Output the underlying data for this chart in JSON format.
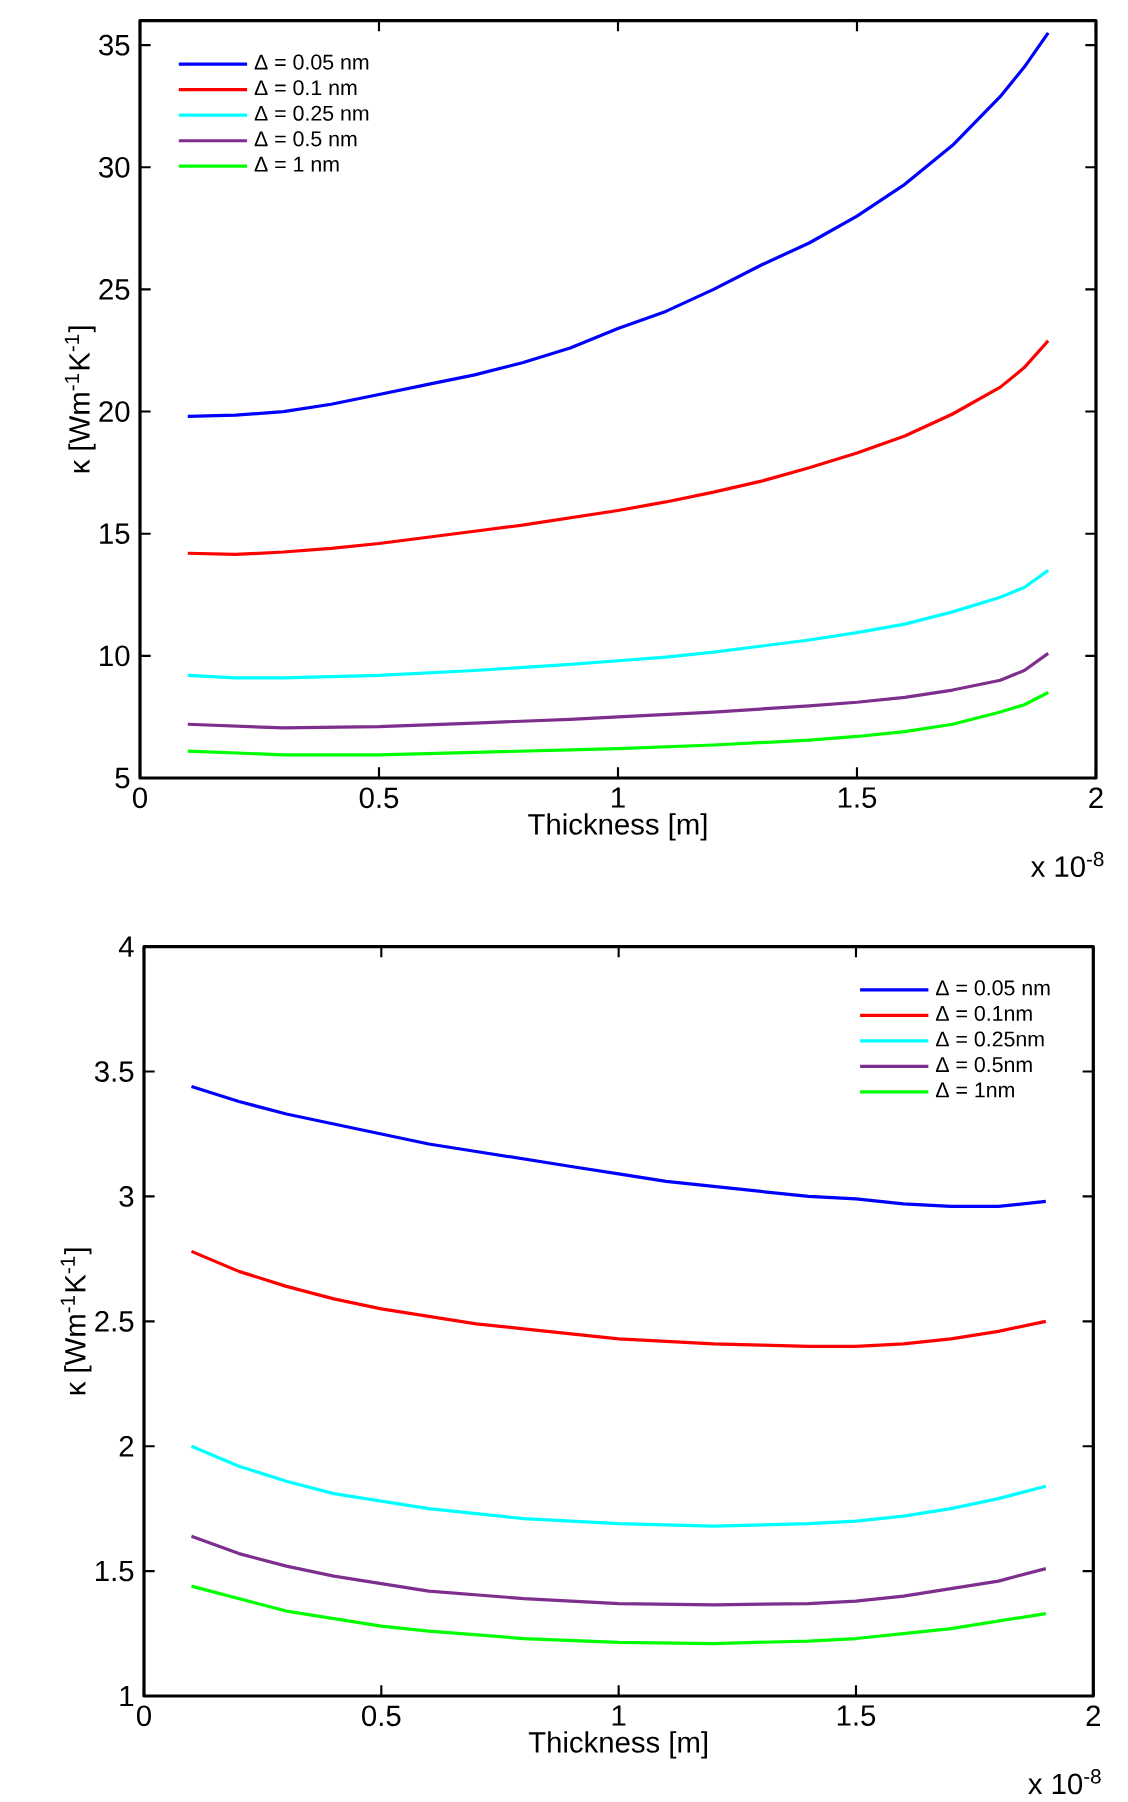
{
  "chart_data": [
    {
      "type": "line",
      "xlabel": "Thickness [m]",
      "ylabel": "κ [Wm$^{-1}$K$^{-1}$]",
      "xlim": [
        0,
        2
      ],
      "xticks": [
        0,
        0.5,
        1,
        1.5,
        2
      ],
      "ylim": [
        5,
        36
      ],
      "yticks": [
        5,
        10,
        15,
        20,
        25,
        30,
        35
      ],
      "legend": "top left",
      "grid": false,
      "marker": "none",
      "line_style": "solid",
      "annotations": [
        "x 10$^{-8}$"
      ],
      "series": [
        {
          "name": "Δ = 0.05 nm",
          "color": "#0000ff",
          "x": [
            0.1,
            0.2,
            0.3,
            0.4,
            0.5,
            0.6,
            0.7,
            0.8,
            0.9,
            1.0,
            1.1,
            1.2,
            1.3,
            1.4,
            1.5,
            1.6,
            1.7,
            1.8,
            1.85,
            1.9
          ],
          "values": [
            19.8,
            19.85,
            20.0,
            20.3,
            20.7,
            21.1,
            21.5,
            22.0,
            22.6,
            23.4,
            24.1,
            25.0,
            26.0,
            26.9,
            28.0,
            29.3,
            30.9,
            32.9,
            34.1,
            35.5
          ]
        },
        {
          "name": "Δ = 0.1 nm",
          "color": "#ff0000",
          "x": [
            0.1,
            0.2,
            0.3,
            0.4,
            0.5,
            0.6,
            0.7,
            0.8,
            0.9,
            1.0,
            1.1,
            1.2,
            1.3,
            1.4,
            1.5,
            1.6,
            1.7,
            1.8,
            1.85,
            1.9
          ],
          "values": [
            14.2,
            14.15,
            14.25,
            14.4,
            14.6,
            14.85,
            15.1,
            15.35,
            15.65,
            15.95,
            16.3,
            16.7,
            17.15,
            17.7,
            18.3,
            19.0,
            19.9,
            21.0,
            21.8,
            22.9
          ]
        },
        {
          "name": "Δ = 0.25 nm",
          "color": "#00ffff",
          "x": [
            0.1,
            0.2,
            0.3,
            0.5,
            0.7,
            0.9,
            1.0,
            1.1,
            1.2,
            1.3,
            1.4,
            1.5,
            1.6,
            1.7,
            1.8,
            1.85,
            1.9
          ],
          "values": [
            9.2,
            9.1,
            9.1,
            9.2,
            9.4,
            9.65,
            9.8,
            9.95,
            10.15,
            10.4,
            10.65,
            10.95,
            11.3,
            11.8,
            12.4,
            12.8,
            13.5
          ]
        },
        {
          "name": "Δ = 0.5 nm",
          "color": "#7e2f8e",
          "x": [
            0.1,
            0.3,
            0.5,
            0.7,
            0.9,
            1.0,
            1.2,
            1.4,
            1.5,
            1.6,
            1.7,
            1.8,
            1.85,
            1.9
          ],
          "values": [
            7.2,
            7.05,
            7.1,
            7.25,
            7.4,
            7.5,
            7.7,
            7.95,
            8.1,
            8.3,
            8.6,
            9.0,
            9.4,
            10.1
          ]
        },
        {
          "name": "Δ = 1 nm",
          "color": "#00ff00",
          "x": [
            0.1,
            0.3,
            0.5,
            0.7,
            0.9,
            1.0,
            1.2,
            1.4,
            1.5,
            1.6,
            1.7,
            1.8,
            1.85,
            1.9
          ],
          "values": [
            6.1,
            5.95,
            5.95,
            6.05,
            6.15,
            6.2,
            6.35,
            6.55,
            6.7,
            6.9,
            7.2,
            7.7,
            8.0,
            8.5
          ]
        }
      ]
    },
    {
      "type": "line",
      "xlabel": "Thickness [m]",
      "ylabel": "κ [Wm$^{-1}$K$^{-1}$]",
      "xlim": [
        0,
        2
      ],
      "xticks": [
        0,
        0.5,
        1,
        1.5,
        2
      ],
      "ylim": [
        1,
        4
      ],
      "yticks": [
        1,
        1.5,
        2,
        2.5,
        3,
        3.5,
        4
      ],
      "legend": "top right",
      "grid": false,
      "marker": "none",
      "line_style": "solid",
      "annotations": [
        "x 10$^{-8}$"
      ],
      "series": [
        {
          "name": "Δ = 0.05 nm",
          "color": "#0000ff",
          "x": [
            0.1,
            0.2,
            0.3,
            0.4,
            0.5,
            0.6,
            0.7,
            0.8,
            0.9,
            1.0,
            1.1,
            1.2,
            1.3,
            1.4,
            1.5,
            1.6,
            1.7,
            1.8,
            1.9
          ],
          "values": [
            3.44,
            3.38,
            3.33,
            3.29,
            3.25,
            3.21,
            3.18,
            3.15,
            3.12,
            3.09,
            3.06,
            3.04,
            3.02,
            3.0,
            2.99,
            2.97,
            2.96,
            2.96,
            2.98
          ]
        },
        {
          "name": "Δ = 0.1nm",
          "color": "#ff0000",
          "x": [
            0.1,
            0.2,
            0.3,
            0.4,
            0.5,
            0.6,
            0.7,
            0.8,
            0.9,
            1.0,
            1.1,
            1.2,
            1.3,
            1.4,
            1.5,
            1.6,
            1.7,
            1.8,
            1.9
          ],
          "values": [
            2.78,
            2.7,
            2.64,
            2.59,
            2.55,
            2.52,
            2.49,
            2.47,
            2.45,
            2.43,
            2.42,
            2.41,
            2.405,
            2.4,
            2.4,
            2.41,
            2.43,
            2.46,
            2.5
          ]
        },
        {
          "name": "Δ = 0.25nm",
          "color": "#00ffff",
          "x": [
            0.1,
            0.2,
            0.3,
            0.4,
            0.5,
            0.6,
            0.7,
            0.8,
            0.9,
            1.0,
            1.2,
            1.4,
            1.5,
            1.6,
            1.7,
            1.8,
            1.9
          ],
          "values": [
            2.0,
            1.92,
            1.86,
            1.81,
            1.78,
            1.75,
            1.73,
            1.71,
            1.7,
            1.69,
            1.68,
            1.69,
            1.7,
            1.72,
            1.75,
            1.79,
            1.84
          ]
        },
        {
          "name": "Δ = 0.5nm",
          "color": "#7e2f8e",
          "x": [
            0.1,
            0.2,
            0.3,
            0.4,
            0.5,
            0.6,
            0.8,
            1.0,
            1.2,
            1.4,
            1.5,
            1.6,
            1.7,
            1.8,
            1.9
          ],
          "values": [
            1.64,
            1.57,
            1.52,
            1.48,
            1.45,
            1.42,
            1.39,
            1.37,
            1.365,
            1.37,
            1.38,
            1.4,
            1.43,
            1.46,
            1.51
          ]
        },
        {
          "name": "Δ = 1nm",
          "color": "#00ff00",
          "x": [
            0.1,
            0.2,
            0.3,
            0.4,
            0.5,
            0.6,
            0.8,
            1.0,
            1.2,
            1.4,
            1.5,
            1.6,
            1.7,
            1.8,
            1.9
          ],
          "values": [
            1.44,
            1.39,
            1.34,
            1.31,
            1.28,
            1.26,
            1.23,
            1.215,
            1.21,
            1.22,
            1.23,
            1.25,
            1.27,
            1.3,
            1.33
          ]
        }
      ]
    }
  ]
}
